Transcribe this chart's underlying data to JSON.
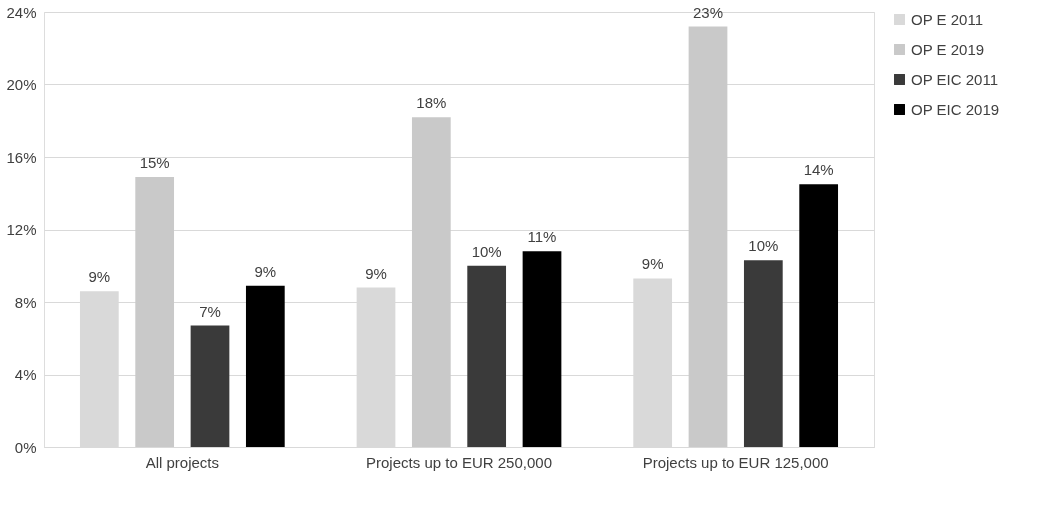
{
  "chart_data": {
    "type": "bar",
    "categories": [
      "All projects",
      "Projects up to EUR 250,000",
      "Projects up to EUR 125,000"
    ],
    "series": [
      {
        "name": "OP E 2011",
        "color": "#d9d9d9",
        "values": [
          8.6,
          8.8,
          9.3
        ],
        "value_labels": [
          "9%",
          "9%",
          "9%"
        ]
      },
      {
        "name": "OP E 2019",
        "color": "#c9c9c9",
        "values": [
          14.9,
          18.2,
          23.2
        ],
        "value_labels": [
          "15%",
          "18%",
          "23%"
        ]
      },
      {
        "name": "OP EIC 2011",
        "color": "#3a3a3a",
        "values": [
          6.7,
          10.0,
          10.3
        ],
        "value_labels": [
          "7%",
          "10%",
          "10%"
        ]
      },
      {
        "name": "OP EIC 2019",
        "color": "#000000",
        "values": [
          8.9,
          10.8,
          14.5
        ],
        "value_labels": [
          "9%",
          "11%",
          "14%"
        ]
      }
    ],
    "ylim": [
      0,
      24
    ],
    "yticks": [
      {
        "value": 0,
        "label": "0%"
      },
      {
        "value": 4,
        "label": "4%"
      },
      {
        "value": 8,
        "label": "8%"
      },
      {
        "value": 12,
        "label": "12%"
      },
      {
        "value": 16,
        "label": "16%"
      },
      {
        "value": 20,
        "label": "20%"
      },
      {
        "value": 24,
        "label": "24%"
      }
    ],
    "grid": "y",
    "legend": "right"
  }
}
